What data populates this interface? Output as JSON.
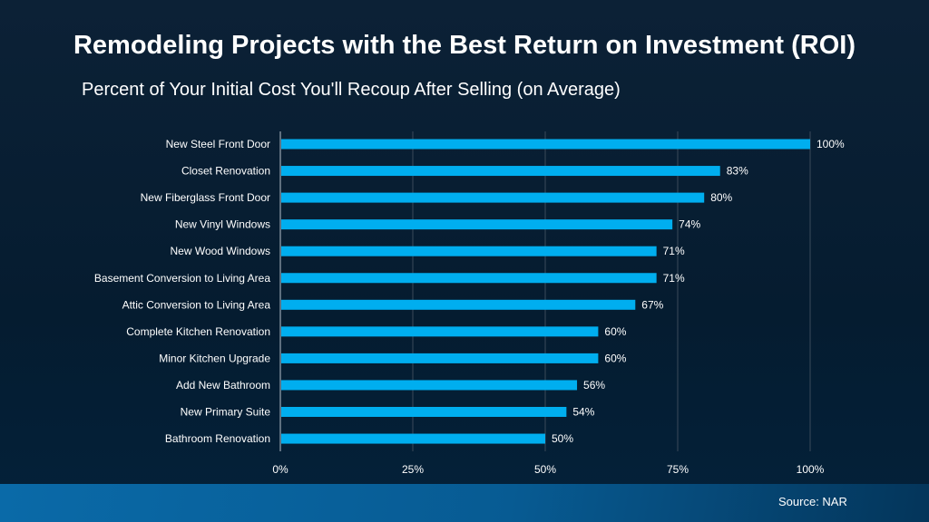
{
  "chart_data": {
    "type": "bar",
    "orientation": "horizontal",
    "title": "Remodeling Projects with the Best Return on Investment (ROI)",
    "subtitle": "Percent of Your Initial Cost You'll Recoup After Selling (on Average)",
    "categories": [
      "New Steel Front Door",
      "Closet Renovation",
      "New Fiberglass Front Door",
      "New Vinyl Windows",
      "New Wood Windows",
      "Basement Conversion to Living Area",
      "Attic Conversion to Living Area",
      "Complete Kitchen Renovation",
      "Minor Kitchen Upgrade",
      "Add New Bathroom",
      "New Primary Suite",
      "Bathroom Renovation"
    ],
    "values": [
      100,
      83,
      80,
      74,
      71,
      71,
      67,
      60,
      60,
      56,
      54,
      50
    ],
    "data_labels": [
      "100%",
      "83%",
      "80%",
      "74%",
      "71%",
      "71%",
      "67%",
      "60%",
      "60%",
      "56%",
      "54%",
      "50%"
    ],
    "xlim": [
      0,
      100
    ],
    "xticks": [
      0,
      25,
      50,
      75,
      100
    ],
    "xtick_labels": [
      "0%",
      "25%",
      "50%",
      "75%",
      "100%"
    ],
    "grid": "vertical",
    "bar_color": "#00aeef",
    "source": "Source: NAR"
  }
}
